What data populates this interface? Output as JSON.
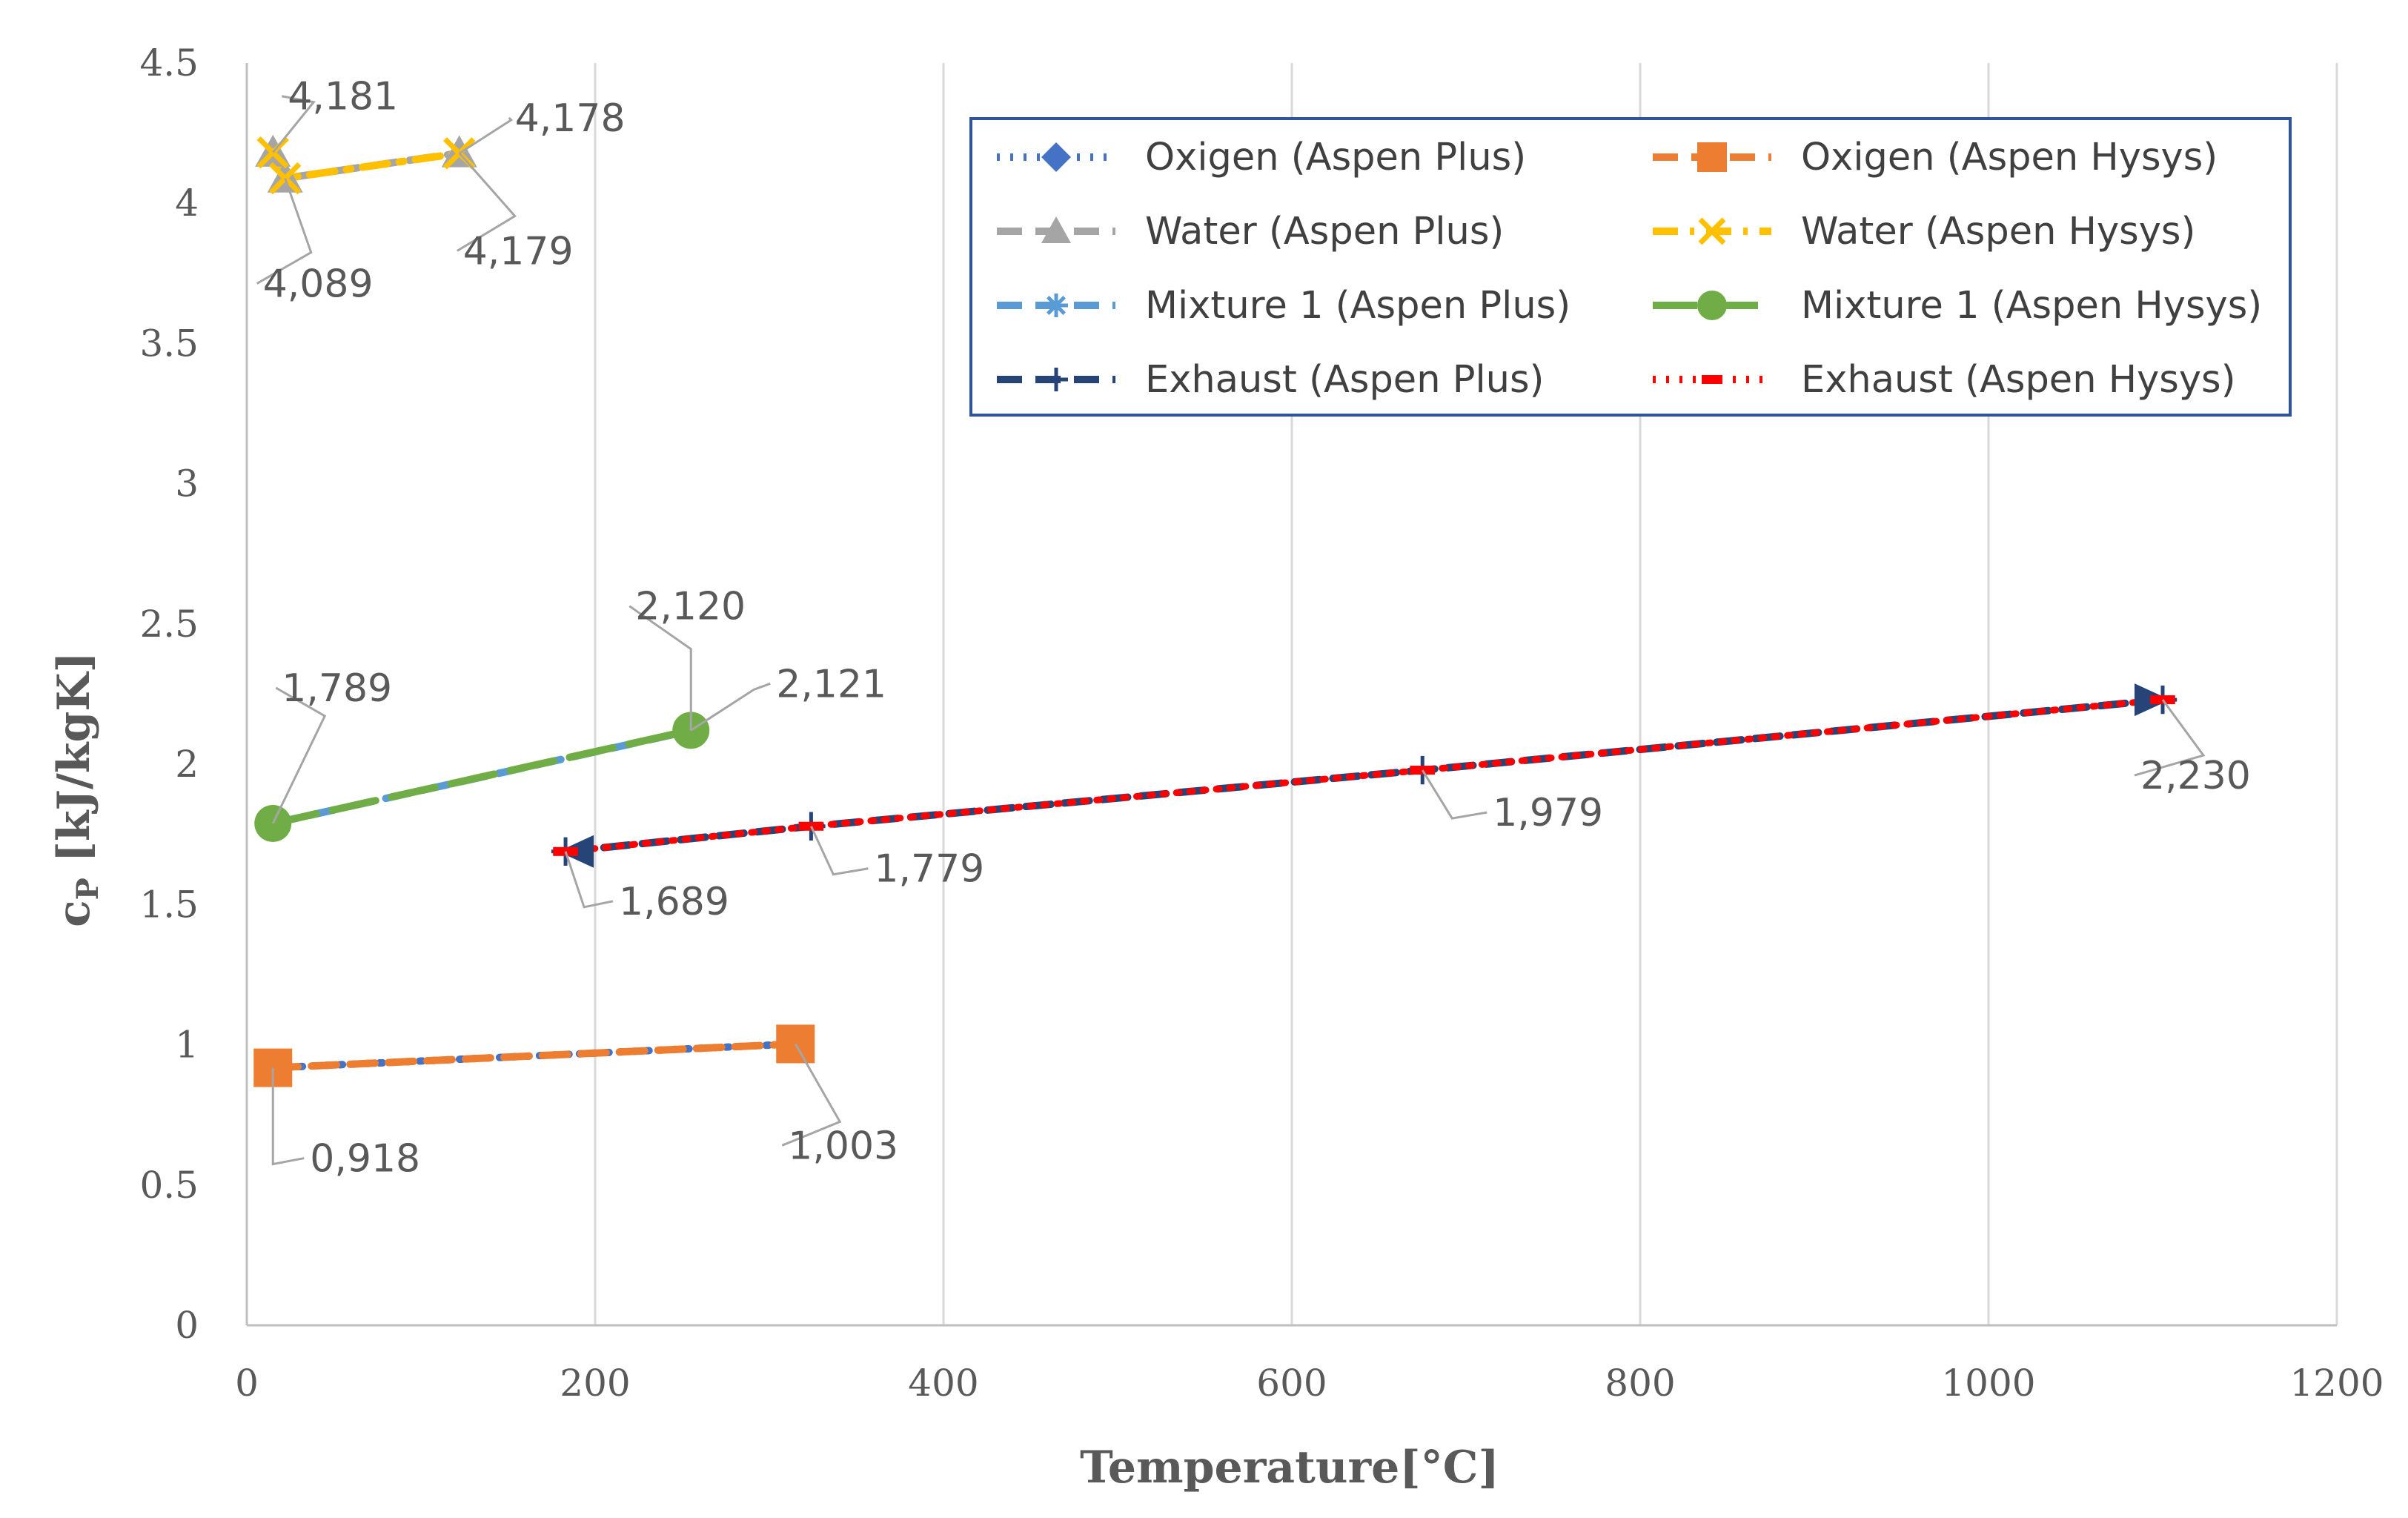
{
  "chart_data": {
    "type": "scatter",
    "title": "",
    "xlabel": "Temperature[°C]",
    "ylabel": "cP [kJ/kgK]",
    "ylabel_main": "c",
    "ylabel_sub": "P",
    "ylabel_rest": " [kJ/kgK]",
    "xlim": [
      0,
      1200
    ],
    "ylim": [
      0,
      4.5
    ],
    "x_ticks": [
      0,
      200,
      400,
      600,
      800,
      1000,
      1200
    ],
    "x_tick_labels": [
      "0",
      "200",
      "400",
      "600",
      "800",
      "1000",
      "1200"
    ],
    "y_ticks": [
      0,
      0.5,
      1,
      1.5,
      2,
      2.5,
      3,
      3.5,
      4,
      4.5
    ],
    "y_tick_labels": [
      "0",
      "0.5",
      "1",
      "1.5",
      "2",
      "2.5",
      "3",
      "3.5",
      "4",
      "4.5"
    ],
    "grid": "vertical",
    "legend_position": "top-right",
    "series": [
      {
        "name": "Oxigen (Aspen Plus)",
        "color": "#4472C4",
        "marker": "diamond",
        "dash": "dot",
        "x": [
          15,
          315
        ],
        "y": [
          0.918,
          1.003
        ]
      },
      {
        "name": "Oxigen (Aspen Hysys)",
        "color": "#ED7D31",
        "marker": "square",
        "dash": "dash",
        "x": [
          15,
          315
        ],
        "y": [
          0.918,
          1.003
        ]
      },
      {
        "name": "Water (Aspen Plus)",
        "color": "#A5A5A5",
        "marker": "triangle",
        "dash": "dash",
        "x": [
          15,
          22,
          122
        ],
        "y": [
          4.181,
          4.089,
          4.179
        ]
      },
      {
        "name": "Water (Aspen Hysys)",
        "color": "#FFC000",
        "marker": "x",
        "dash": "dash-dot",
        "x": [
          15,
          22,
          122
        ],
        "y": [
          4.181,
          4.089,
          4.178
        ]
      },
      {
        "name": "Mixture 1 (Aspen Plus)",
        "color": "#5B9BD5",
        "marker": "star",
        "dash": "dash",
        "x": [
          15,
          255
        ],
        "y": [
          1.789,
          2.12
        ]
      },
      {
        "name": "Mixture 1 (Aspen Hysys)",
        "color": "#70AD47",
        "marker": "circle",
        "dash": "long-dash",
        "x": [
          15,
          255
        ],
        "y": [
          1.789,
          2.121
        ]
      },
      {
        "name": "Exhaust (Aspen Plus)",
        "color": "#264478",
        "marker": "plus-arrow",
        "dash": "dash",
        "x": [
          183,
          324,
          675,
          1100
        ],
        "y": [
          1.689,
          1.779,
          1.979,
          2.23
        ]
      },
      {
        "name": "Exhaust (Aspen Hysys)",
        "color": "#FF0000",
        "marker": "dash",
        "dash": "dot",
        "x": [
          183,
          324,
          675,
          1100
        ],
        "y": [
          1.689,
          1.779,
          1.979,
          2.23
        ]
      }
    ],
    "annotations": [
      {
        "text": "4,181",
        "x": 15,
        "y": 4.181
      },
      {
        "text": "4,089",
        "x": 22,
        "y": 4.089
      },
      {
        "text": "4,178",
        "x": 122,
        "y": 4.178
      },
      {
        "text": "4,179",
        "x": 122,
        "y": 4.179
      },
      {
        "text": "1,789",
        "x": 15,
        "y": 1.789
      },
      {
        "text": "2,120",
        "x": 255,
        "y": 2.12
      },
      {
        "text": "2,121",
        "x": 255,
        "y": 2.121
      },
      {
        "text": "1,689",
        "x": 183,
        "y": 1.689
      },
      {
        "text": "1,779",
        "x": 324,
        "y": 1.779
      },
      {
        "text": "1,979",
        "x": 675,
        "y": 1.979
      },
      {
        "text": "2,230",
        "x": 1100,
        "y": 2.23
      },
      {
        "text": "0,918",
        "x": 15,
        "y": 0.918
      },
      {
        "text": "1,003",
        "x": 315,
        "y": 1.003
      }
    ]
  }
}
